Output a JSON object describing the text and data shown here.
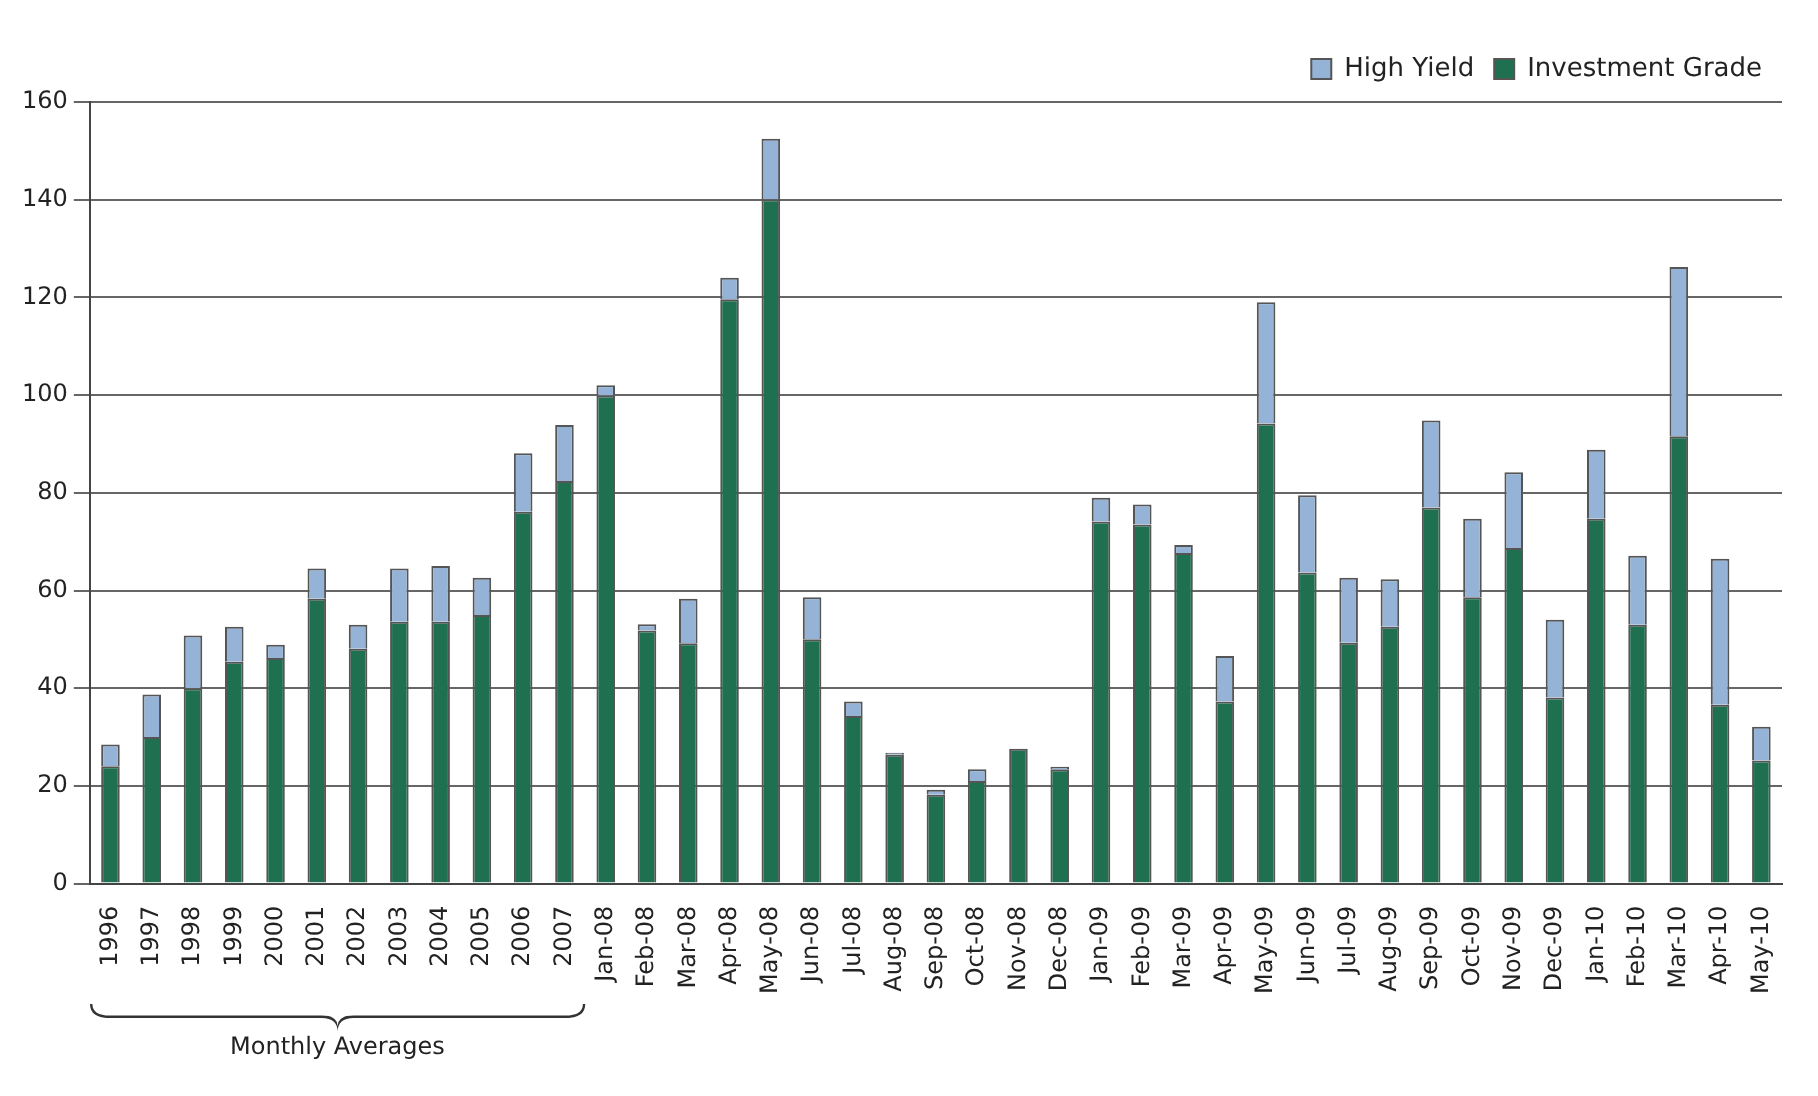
{
  "chart_data": {
    "type": "bar",
    "stacked": true,
    "categories": [
      "1996",
      "1997",
      "1998",
      "1999",
      "2000",
      "2001",
      "2002",
      "2003",
      "2004",
      "2005",
      "2006",
      "2007",
      "Jan-08",
      "Feb-08",
      "Mar-08",
      "Apr-08",
      "May-08",
      "Jun-08",
      "Jul-08",
      "Aug-08",
      "Sep-08",
      "Oct-08",
      "Nov-08",
      "Dec-08",
      "Jan-09",
      "Feb-09",
      "Mar-09",
      "Apr-09",
      "May-09",
      "Jun-09",
      "Jul-09",
      "Aug-09",
      "Sep-09",
      "Oct-09",
      "Nov-09",
      "Dec-09",
      "Jan-10",
      "Feb-10",
      "Mar-10",
      "Apr-10",
      "May-10"
    ],
    "series": [
      {
        "name": "Investment Grade",
        "color": "#1f7050",
        "values": [
          24,
          30,
          40,
          45.4,
          46.2,
          58.3,
          48.1,
          53.6,
          53.6,
          55,
          76.1,
          82.4,
          99.9,
          51.8,
          49.2,
          119.6,
          140.1,
          50,
          34.3,
          26.4,
          18.2,
          21,
          27.6,
          23.4,
          74.1,
          73.5,
          67.7,
          37.3,
          94.2,
          63.7,
          49.3,
          52.6,
          77,
          58.6,
          68.7,
          38.1,
          74.7,
          53,
          91.6,
          36.6,
          25.2
        ]
      },
      {
        "name": "High Yield",
        "color": "#95b3d7",
        "values": [
          4.5,
          8.7,
          10.8,
          7.2,
          2.7,
          6.2,
          4.9,
          10.9,
          11.4,
          7.6,
          12,
          11.5,
          2.1,
          1.3,
          9.1,
          4.4,
          12.4,
          8.6,
          3,
          0.4,
          1,
          2.4,
          0,
          0.5,
          4.9,
          4.1,
          1.6,
          9.3,
          24.8,
          15.8,
          13.3,
          9.7,
          17.8,
          16.1,
          15.5,
          15.9,
          14.1,
          14.1,
          34.6,
          29.9,
          6.9
        ]
      }
    ],
    "ylim": [
      0,
      160
    ],
    "yticks": [
      0,
      20,
      40,
      60,
      80,
      100,
      120,
      140,
      160
    ],
    "grid": "y",
    "legend": "top right",
    "annotations": [
      "Monthly Averages"
    ]
  }
}
